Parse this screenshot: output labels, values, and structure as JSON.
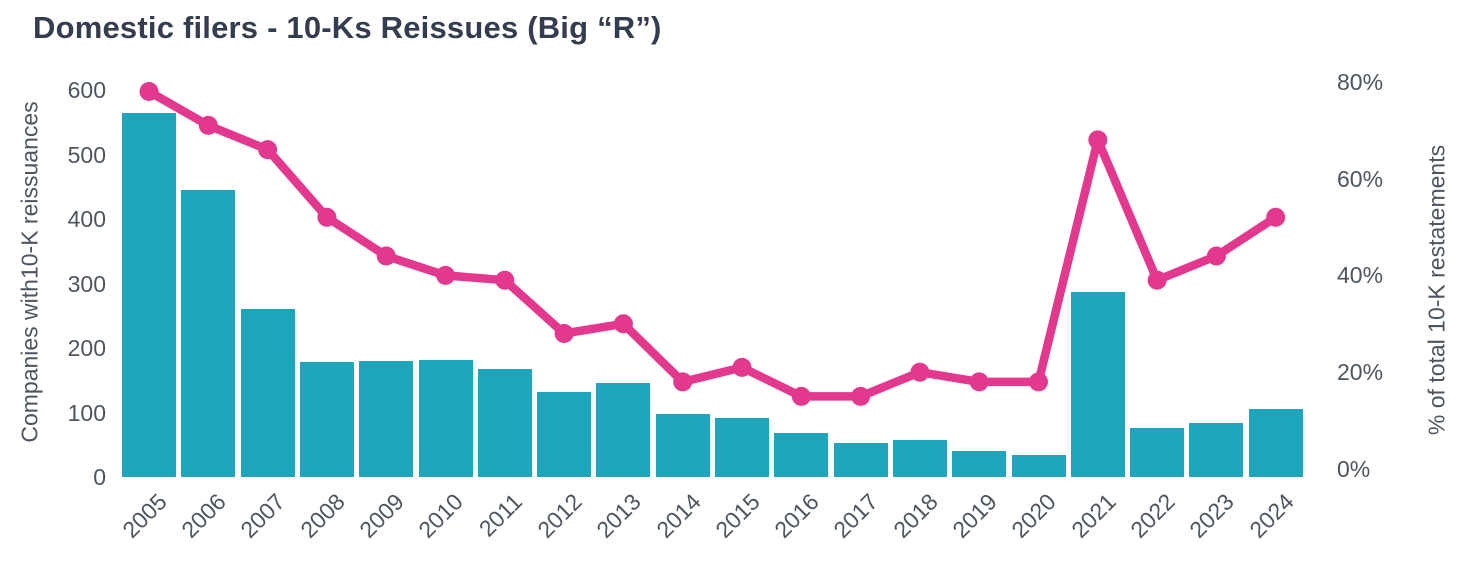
{
  "title": "Domestic filers - 10-Ks Reissues (Big “R”)",
  "colors": {
    "bar": "#1FA5BC",
    "line": "#E2398F",
    "title_text": "#333D4F",
    "axis_text": "#4D5660",
    "background": "#FFFFFF"
  },
  "chart_data": {
    "type": "combo-bar-line",
    "title": "Domestic filers - 10-Ks Reissues (Big “R”)",
    "categories": [
      "2005",
      "2006",
      "2007",
      "2008",
      "2009",
      "2010",
      "2011",
      "2012",
      "2013",
      "2014",
      "2015",
      "2016",
      "2017",
      "2018",
      "2019",
      "2020",
      "2021",
      "2022",
      "2023",
      "2024"
    ],
    "series": [
      {
        "name": "Companies with 10-K reissuances",
        "type": "bar",
        "axis": "left",
        "color": "#1FA5BC",
        "values": [
          565,
          445,
          260,
          178,
          180,
          182,
          168,
          132,
          146,
          97,
          92,
          68,
          53,
          57,
          41,
          34,
          287,
          76,
          83,
          106
        ]
      },
      {
        "name": "% of total 10-K restatements",
        "type": "line",
        "axis": "right",
        "color": "#E2398F",
        "values": [
          78,
          71,
          66,
          52,
          44,
          40,
          39,
          28,
          30,
          18,
          21,
          15,
          15,
          20,
          18,
          18,
          68,
          39,
          44,
          52
        ]
      }
    ],
    "left_axis": {
      "label": "Companies with10-K reissuances",
      "range": [
        0,
        600
      ],
      "tick_step": 100,
      "ticks": [
        "0",
        "100",
        "200",
        "300",
        "400",
        "500",
        "600"
      ]
    },
    "right_axis": {
      "label": "% of total 10-K restatements",
      "range": [
        0,
        80
      ],
      "tick_step": 20,
      "ticks": [
        "0%",
        "20%",
        "40%",
        "60%",
        "80%"
      ]
    },
    "grid": false,
    "legend": "none",
    "x_tick_rotation": 45
  }
}
